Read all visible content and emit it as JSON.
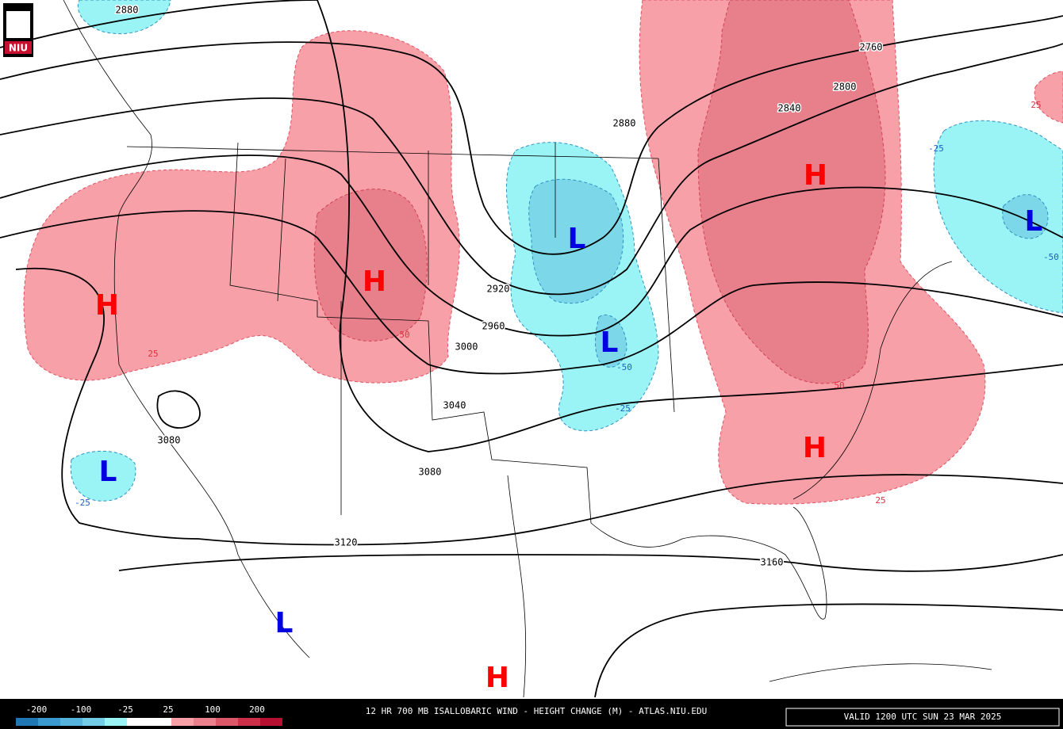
{
  "logo": {
    "text": "NIU"
  },
  "map": {
    "contour_labels": [
      "2880",
      "2760",
      "2800",
      "2840",
      "2880",
      "2920",
      "2960",
      "3000",
      "3040",
      "3080",
      "3080",
      "3120",
      "3160"
    ],
    "change_labels": [
      "25",
      "-25",
      "-50",
      "50",
      "25",
      "-50",
      "50",
      "-25",
      "-25",
      "25"
    ],
    "centers": [
      "H",
      "H",
      "H",
      "H",
      "H",
      "L",
      "L",
      "L",
      "L",
      "L"
    ]
  },
  "legend": {
    "labels": [
      "-200",
      "-100",
      "-25",
      "25",
      "100",
      "200"
    ]
  },
  "footer": {
    "title": "12 HR 700 MB ISALLOBARIC WIND - HEIGHT CHANGE (M) - ATLAS.NIU.EDU",
    "valid": "VALID 1200 UTC SUN 23 MAR 2025"
  }
}
